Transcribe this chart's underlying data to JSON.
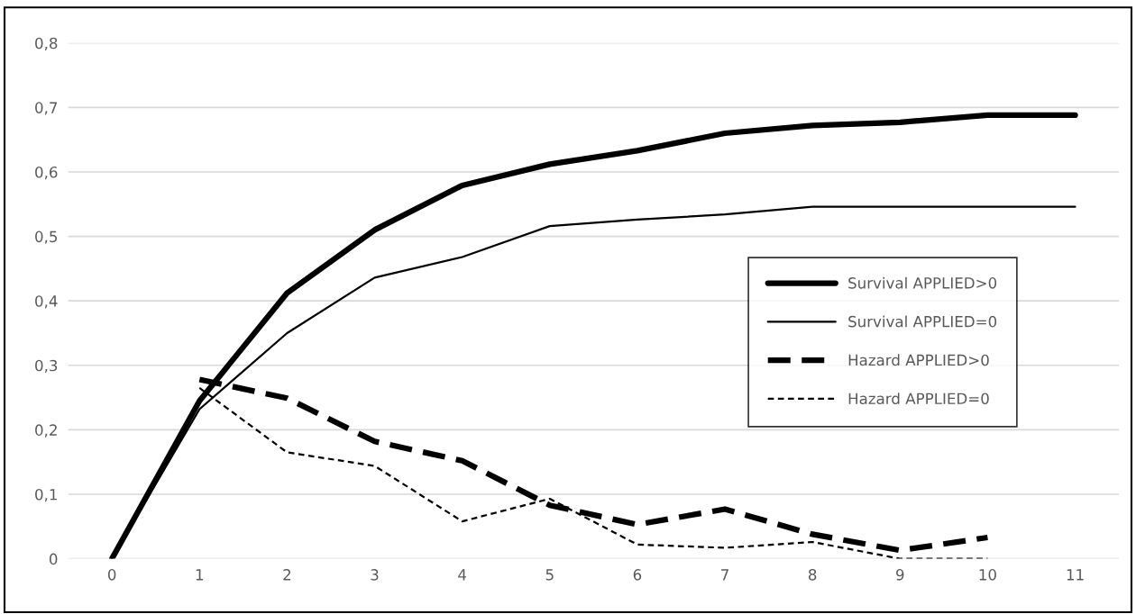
{
  "chart_data": {
    "type": "line",
    "categories": [
      "0",
      "1",
      "2",
      "3",
      "4",
      "5",
      "6",
      "7",
      "8",
      "9",
      "10",
      "11"
    ],
    "series": [
      {
        "name": "Survival APPLIED>0",
        "color": "#000000",
        "line_style": "solid",
        "values": [
          0,
          0.245,
          0.412,
          0.51,
          0.579,
          0.612,
          0.633,
          0.66,
          0.672,
          0.677,
          0.688,
          0.688
        ]
      },
      {
        "name": "Survival APPLIED=0",
        "color": "#000000",
        "line_style": "solid",
        "values": [
          0,
          0.232,
          0.35,
          0.436,
          0.468,
          0.516,
          0.526,
          0.534,
          0.546,
          0.546,
          0.546,
          0.546
        ]
      },
      {
        "name": "Hazard APPLIED>0",
        "color": "#000000",
        "line_style": "dashed",
        "values": [
          null,
          0.278,
          0.249,
          0.182,
          0.152,
          0.083,
          0.053,
          0.077,
          0.038,
          0.013,
          0.033,
          null
        ]
      },
      {
        "name": "Hazard APPLIED=0",
        "color": "#000000",
        "line_style": "dashed",
        "values": [
          null,
          0.265,
          0.165,
          0.144,
          0.058,
          0.093,
          0.022,
          0.017,
          0.026,
          0,
          0,
          null
        ]
      }
    ],
    "ylim": [
      0,
      0.8
    ],
    "yticks": [
      0,
      {
        "value": 0.1,
        "label": "0,1"
      },
      {
        "value": 0.2,
        "label": "0,2"
      },
      {
        "value": 0.3,
        "label": "0,3"
      },
      {
        "value": 0.4,
        "label": "0,4"
      },
      {
        "value": 0.5,
        "label": "0,5"
      },
      {
        "value": 0.6,
        "label": "0,6"
      },
      {
        "value": 0.7,
        "label": "0,7"
      },
      {
        "value": 0.8,
        "label": "0,8"
      }
    ],
    "grid": "y",
    "legend": "right",
    "marker": "none"
  }
}
